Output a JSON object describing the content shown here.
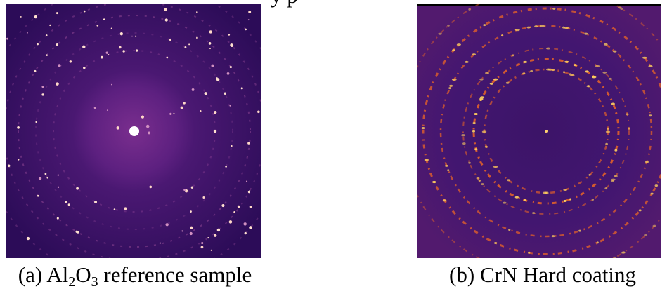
{
  "figure": {
    "top_fragment": "y p",
    "caption_a": {
      "parts": [
        "(a) Al",
        "2",
        "O",
        "3",
        " reference sample"
      ]
    },
    "caption_b": {
      "parts": [
        "(b) CrN Hard coating"
      ]
    }
  }
}
